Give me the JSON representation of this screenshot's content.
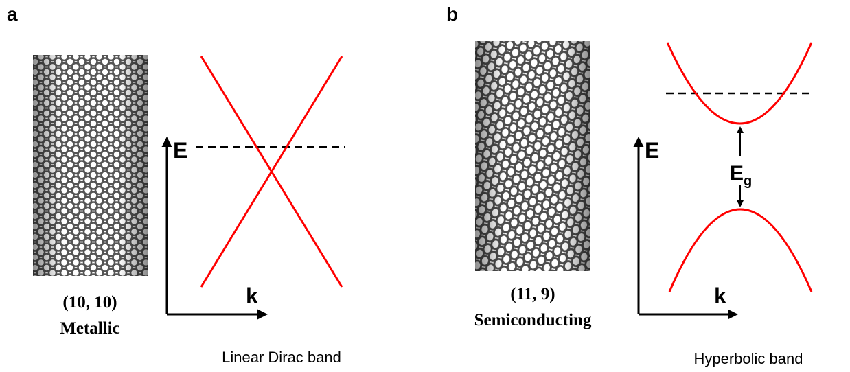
{
  "panels": [
    {
      "label": "a",
      "chirality": "(10, 10)",
      "kind": "Metallic",
      "axis_e": "E",
      "axis_k": "k",
      "caption": "Linear Dirac band"
    },
    {
      "label": "b",
      "chirality": "(11, 9)",
      "kind": "Semiconducting",
      "axis_e": "E",
      "axis_k": "k",
      "gap_label": "E",
      "gap_subscript": "g",
      "caption": "Hyperbolic band"
    }
  ]
}
